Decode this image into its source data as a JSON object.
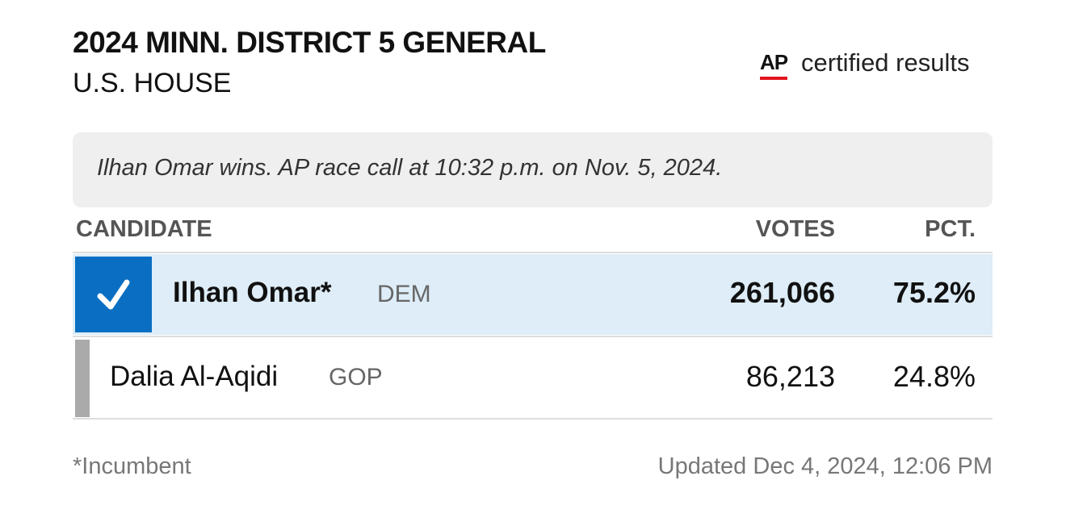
{
  "header": {
    "title": "2024 MINN. DISTRICT 5 GENERAL",
    "subtitle": "U.S. HOUSE"
  },
  "source": {
    "logo": "AP",
    "label": "certified results"
  },
  "call": "Ilhan Omar wins. AP race call at 10:32 p.m. on Nov. 5, 2024.",
  "table": {
    "columns": [
      "CANDIDATE",
      "VOTES",
      "PCT."
    ],
    "rows": [
      {
        "name": "Ilhan Omar*",
        "party": "DEM",
        "votes": "261,066",
        "pct": "75.2%"
      },
      {
        "name": "Dalia Al-Aqidi",
        "party": "GOP",
        "votes": "86,213",
        "pct": "24.8%"
      }
    ]
  },
  "footer": {
    "note": "*Incumbent",
    "updated": "Updated Dec 4, 2024, 12:06 PM"
  }
}
